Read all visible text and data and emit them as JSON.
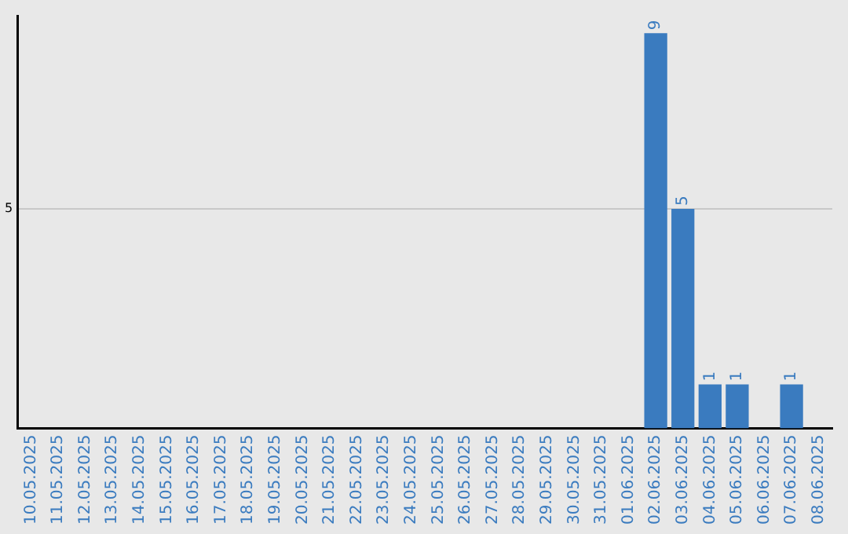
{
  "chart_data": {
    "type": "bar",
    "categories": [
      "10.05.2025",
      "11.05.2025",
      "12.05.2025",
      "13.05.2025",
      "14.05.2025",
      "15.05.2025",
      "16.05.2025",
      "17.05.2025",
      "18.05.2025",
      "19.05.2025",
      "20.05.2025",
      "21.05.2025",
      "22.05.2025",
      "23.05.2025",
      "24.05.2025",
      "25.05.2025",
      "26.05.2025",
      "27.05.2025",
      "28.05.2025",
      "29.05.2025",
      "30.05.2025",
      "31.05.2025",
      "01.06.2025",
      "02.06.2025",
      "03.06.2025",
      "04.06.2025",
      "05.06.2025",
      "06.06.2025",
      "07.06.2025",
      "08.06.2025"
    ],
    "values": [
      null,
      null,
      null,
      null,
      null,
      null,
      null,
      null,
      null,
      null,
      null,
      null,
      null,
      null,
      null,
      null,
      null,
      null,
      null,
      null,
      null,
      null,
      null,
      9,
      5,
      1,
      1,
      null,
      1,
      null
    ],
    "value_labels": [
      null,
      null,
      null,
      null,
      null,
      null,
      null,
      null,
      null,
      null,
      null,
      null,
      null,
      null,
      null,
      null,
      null,
      null,
      null,
      null,
      null,
      null,
      null,
      "9",
      "5",
      "1",
      "1",
      null,
      "1",
      null
    ],
    "color": "#3a7bbf",
    "ylim": [
      0,
      9.4
    ],
    "yticks": [
      5
    ],
    "grid": "y",
    "legend": false
  }
}
